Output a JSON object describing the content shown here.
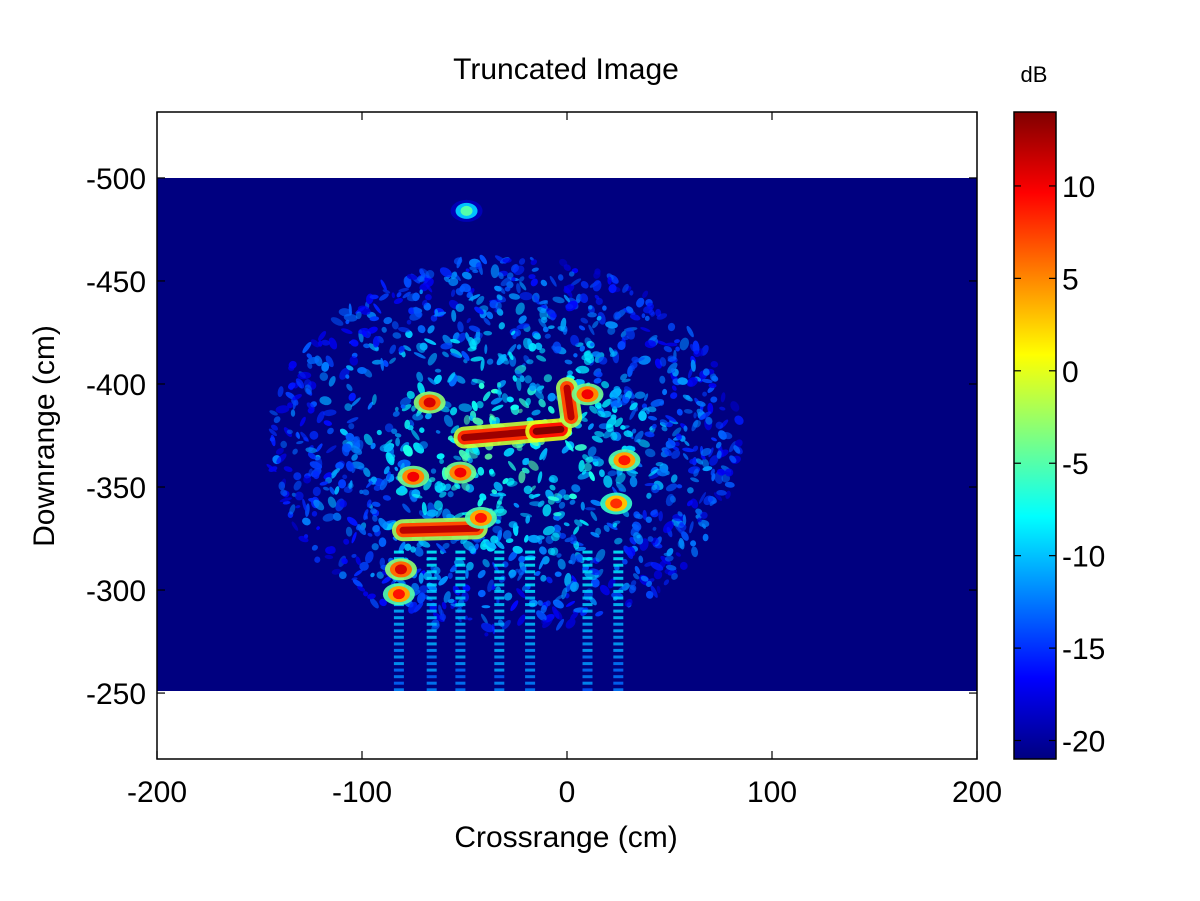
{
  "chart_data": {
    "type": "heatmap",
    "title": "Truncated Image",
    "xlabel": "Crossrange (cm)",
    "ylabel": "Downrange (cm)",
    "xlim": [
      -200,
      200
    ],
    "ylim": [
      -532,
      -218
    ],
    "y_axis_direction": "reversed",
    "data_extent": {
      "crossrange": [
        -200,
        200
      ],
      "downrange": [
        -500,
        -250
      ]
    },
    "xticks": [
      -200,
      -100,
      0,
      100,
      200
    ],
    "yticks": [
      -500,
      -450,
      -400,
      -350,
      -300,
      -250
    ],
    "background_level_db": -21,
    "colorbar": {
      "label": "dB",
      "colormap": "jet",
      "range": [
        -21,
        14
      ],
      "ticks": [
        -20,
        -15,
        -10,
        -5,
        0,
        5,
        10
      ]
    },
    "bright_features": [
      {
        "kind": "line",
        "from": [
          -50,
          -374
        ],
        "to": [
          -15,
          -377
        ],
        "level_db": 13
      },
      {
        "kind": "line",
        "from": [
          -15,
          -377
        ],
        "to": [
          -3,
          -378
        ],
        "level_db": 14
      },
      {
        "kind": "blob",
        "at": [
          -67,
          -391
        ],
        "level_db": 11
      },
      {
        "kind": "blob",
        "at": [
          -75,
          -355
        ],
        "level_db": 10
      },
      {
        "kind": "blob",
        "at": [
          -52,
          -357
        ],
        "level_db": 10
      },
      {
        "kind": "line",
        "from": [
          -80,
          -329
        ],
        "to": [
          -44,
          -330
        ],
        "level_db": 12
      },
      {
        "kind": "blob",
        "at": [
          -42,
          -335
        ],
        "level_db": 9
      },
      {
        "kind": "blob",
        "at": [
          -81,
          -310
        ],
        "level_db": 11
      },
      {
        "kind": "blob",
        "at": [
          -82,
          -298
        ],
        "level_db": 9
      },
      {
        "kind": "line",
        "from": [
          0,
          -398
        ],
        "to": [
          2,
          -384
        ],
        "level_db": 12
      },
      {
        "kind": "blob",
        "at": [
          10,
          -395
        ],
        "level_db": 10
      },
      {
        "kind": "blob",
        "at": [
          28,
          -363
        ],
        "level_db": 9
      },
      {
        "kind": "blob",
        "at": [
          24,
          -342
        ],
        "level_db": 8
      },
      {
        "kind": "blob",
        "at": [
          -49,
          -484
        ],
        "level_db": -5
      }
    ],
    "diffuse_region": {
      "crossrange": [
        -130,
        70
      ],
      "downrange": [
        -450,
        -290
      ],
      "level_db": [
        -15,
        -5
      ]
    },
    "streaks": {
      "direction": "downrange",
      "from_downrange": -320,
      "to_downrange": -250,
      "crossrange_values": [
        -82,
        -66,
        -52,
        -33,
        -18,
        10,
        25
      ],
      "level_db": [
        -14,
        -8
      ]
    }
  }
}
